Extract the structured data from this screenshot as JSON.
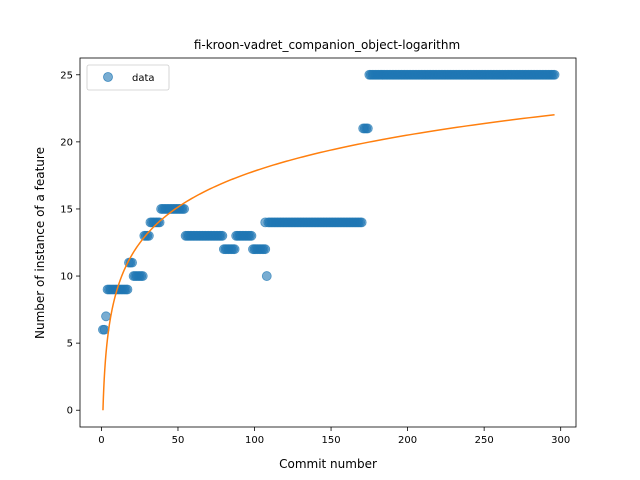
{
  "chart_data": {
    "type": "scatter",
    "title": "fi-kroon-vadret_companion_object-logarithm",
    "xlabel": "Commit number",
    "ylabel": "Number of instance of a feature",
    "xlim": [
      -14,
      310
    ],
    "ylim": [
      -1.25,
      26.25
    ],
    "xticks": [
      0,
      50,
      100,
      150,
      200,
      250,
      300
    ],
    "yticks": [
      0,
      5,
      10,
      15,
      20,
      25
    ],
    "grid": false,
    "legend": {
      "position": "top-left",
      "entries": [
        "data"
      ]
    },
    "colors": {
      "scatter": "#1f77b4",
      "fit": "#ff7f0e"
    },
    "series": [
      {
        "name": "data",
        "kind": "scatter",
        "segments": [
          {
            "x_start": 1,
            "x_end": 2,
            "y": 6
          },
          {
            "x_start": 3,
            "x_end": 3,
            "y": 7
          },
          {
            "x_start": 4,
            "x_end": 17,
            "y": 9
          },
          {
            "x_start": 18,
            "x_end": 20,
            "y": 11
          },
          {
            "x_start": 21,
            "x_end": 27,
            "y": 10
          },
          {
            "x_start": 28,
            "x_end": 31,
            "y": 13
          },
          {
            "x_start": 32,
            "x_end": 38,
            "y": 14
          },
          {
            "x_start": 39,
            "x_end": 54,
            "y": 15
          },
          {
            "x_start": 55,
            "x_end": 79,
            "y": 13
          },
          {
            "x_start": 80,
            "x_end": 87,
            "y": 12
          },
          {
            "x_start": 88,
            "x_end": 98,
            "y": 13
          },
          {
            "x_start": 99,
            "x_end": 107,
            "y": 12
          },
          {
            "x_start": 107,
            "x_end": 107,
            "y": 14
          },
          {
            "x_start": 108,
            "x_end": 108,
            "y": 10
          },
          {
            "x_start": 109,
            "x_end": 170,
            "y": 14
          },
          {
            "x_start": 171,
            "x_end": 174,
            "y": 21
          },
          {
            "x_start": 175,
            "x_end": 296,
            "y": 25
          }
        ]
      },
      {
        "kind": "line",
        "function": "logarithmic",
        "x_range": [
          1,
          296
        ],
        "a": 0,
        "b": 3.87
      }
    ]
  }
}
